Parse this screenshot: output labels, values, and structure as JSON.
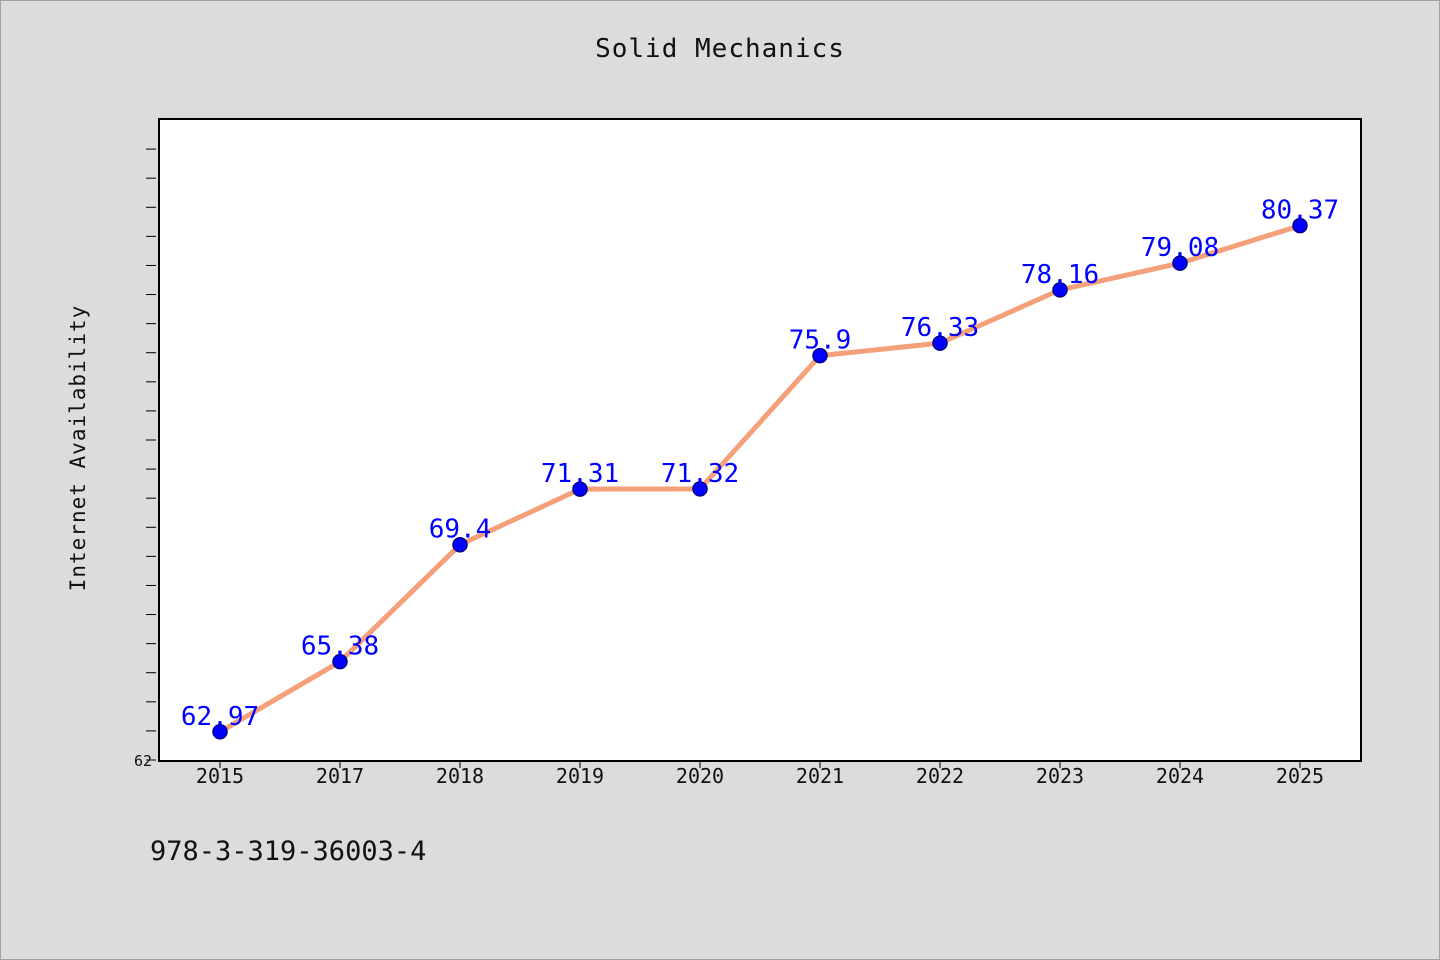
{
  "chart_data": {
    "type": "line",
    "title": "Solid Mechanics",
    "xlabel": "",
    "ylabel": "Internet Availability",
    "categories": [
      "2015",
      "2017",
      "2018",
      "2019",
      "2020",
      "2021",
      "2022",
      "2023",
      "2024",
      "2025"
    ],
    "series": [
      {
        "values": [
          62.97,
          65.38,
          69.4,
          71.31,
          71.32,
          75.9,
          76.33,
          78.16,
          79.08,
          80.37
        ],
        "labels": [
          "62.97",
          "65.38",
          "69.4",
          "71.31",
          "71.32",
          "75.9",
          "76.33",
          "78.16",
          "79.08",
          "80.37"
        ],
        "line_color": "#f4a07a",
        "marker_color": "#0000ff",
        "label_color": "#0000ff"
      }
    ],
    "ylim": [
      62,
      84
    ],
    "y_tick_labels": [
      "62"
    ],
    "grid": false,
    "legend": "none"
  },
  "footer": {
    "isbn": "978-3-319-36003-4"
  }
}
